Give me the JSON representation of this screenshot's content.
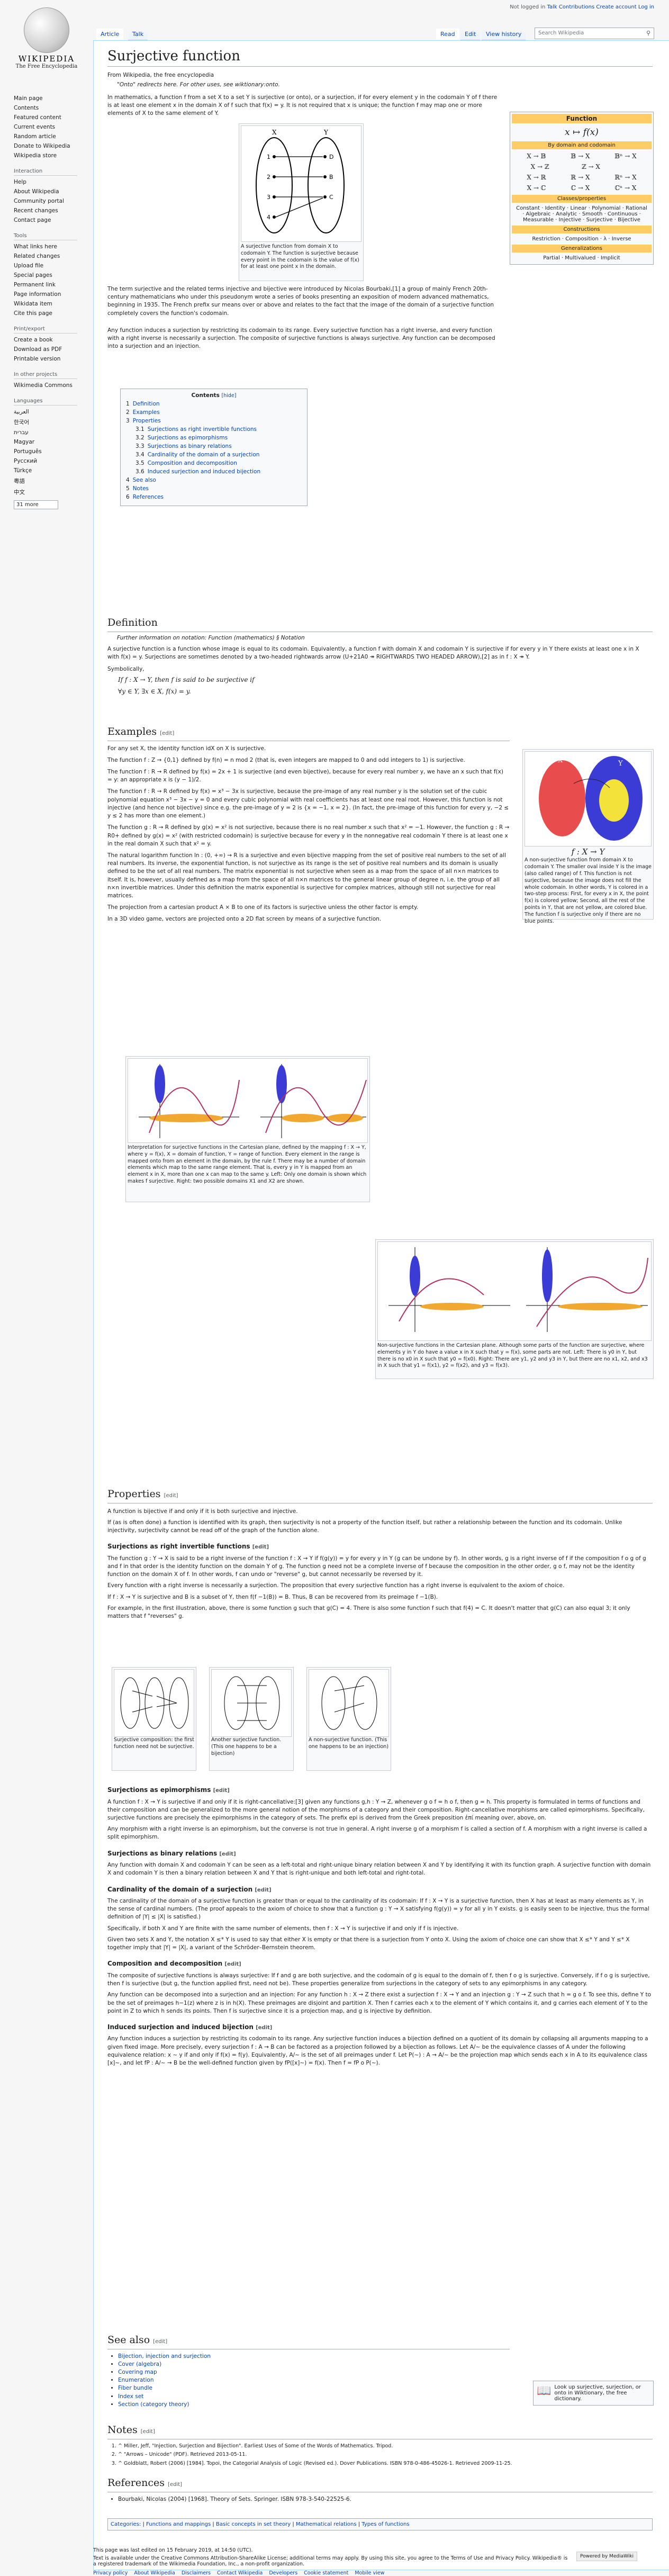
{
  "logo": {
    "wordmark": "WIKIPEDIA",
    "tagline": "The Free Encyclopedia"
  },
  "user": {
    "not_logged": "Not logged in",
    "talk": "Talk",
    "contribs": "Contributions",
    "create": "Create account",
    "login": "Log in"
  },
  "tabs": {
    "article": "Article",
    "talk": "Talk",
    "read": "Read",
    "edit": "Edit",
    "history": "View history"
  },
  "search": {
    "placeholder": "Search Wikipedia"
  },
  "sidebar": {
    "main": [
      "Main page",
      "Contents",
      "Featured content",
      "Current events",
      "Random article",
      "Donate to Wikipedia",
      "Wikipedia store"
    ],
    "interaction_h": "Interaction",
    "interaction": [
      "Help",
      "About Wikipedia",
      "Community portal",
      "Recent changes",
      "Contact page"
    ],
    "tools_h": "Tools",
    "tools": [
      "What links here",
      "Related changes",
      "Upload file",
      "Special pages",
      "Permanent link",
      "Page information",
      "Wikidata item",
      "Cite this page"
    ],
    "print_h": "Print/export",
    "print": [
      "Create a book",
      "Download as PDF",
      "Printable version"
    ],
    "other_h": "In other projects",
    "other": [
      "Wikimedia Commons"
    ],
    "lang_h": "Languages",
    "langs": [
      "العربية",
      "한국어",
      "עברית",
      "Magyar",
      "Português",
      "Русский",
      "Türkçe",
      "粵語",
      "中文"
    ],
    "more_langs": "31 more"
  },
  "page": {
    "title": "Surjective function",
    "from": "From Wikipedia, the free encyclopedia",
    "hatnote": "\"Onto\" redirects here. For other uses, see wiktionary:onto.",
    "intro1": "In mathematics, a function f from a set X to a set Y is surjective (or onto), or a surjection, if for every element y in the codomain Y of f there is at least one element x in the domain X of f such that f(x) = y. It is not required that x is unique; the function f may map one or more elements of X to the same element of Y.",
    "intro2": "The term surjective and the related terms injective and bijective were introduced by Nicolas Bourbaki,[1] a group of mainly French 20th-century mathematicians who under this pseudonym wrote a series of books presenting an exposition of modern advanced mathematics, beginning in 1935. The French prefix sur means over or above and relates to the fact that the image of the domain of a surjective function completely covers the function's codomain.",
    "intro3": "Any function induces a surjection by restricting its codomain to its range. Every surjective function has a right inverse, and every function with a right inverse is necessarily a surjection. The composite of surjective functions is always surjective. Any function can be decomposed into a surjection and an injection.",
    "fig1_caption": "A surjective function from domain X to codomain Y. The function is surjective because every point in the codomain is the value of f(x) for at least one point x in the domain."
  },
  "infobox": {
    "title": "Function",
    "formula": "x ↦ f(x)",
    "subtitle": "By domain and codomain",
    "rows": [
      [
        "X → 𝔹",
        "𝔹 → X",
        "𝔹ⁿ → X"
      ],
      [
        "X → ℤ",
        "ℤ → X",
        ""
      ],
      [
        "X → ℝ",
        "ℝ → X",
        "ℝⁿ → X"
      ],
      [
        "X → ℂ",
        "ℂ → X",
        "ℂⁿ → X"
      ]
    ],
    "classes_h": "Classes/properties",
    "classes": "Constant · Identity · Linear · Polynomial · Rational · Algebraic · Analytic · Smooth · Continuous · Measurable · Injective · Surjective · Bijective",
    "constructions_h": "Constructions",
    "constructions": "Restriction · Composition · λ · Inverse",
    "gen_h": "Generalizations",
    "gen": "Partial · Multivalued · Implicit"
  },
  "toc": {
    "title": "Contents",
    "hide": "[hide]",
    "items": [
      {
        "n": "1",
        "t": "Definition",
        "lvl": 1
      },
      {
        "n": "2",
        "t": "Examples",
        "lvl": 1
      },
      {
        "n": "3",
        "t": "Properties",
        "lvl": 1
      },
      {
        "n": "3.1",
        "t": "Surjections as right invertible functions",
        "lvl": 2
      },
      {
        "n": "3.2",
        "t": "Surjections as epimorphisms",
        "lvl": 2
      },
      {
        "n": "3.3",
        "t": "Surjections as binary relations",
        "lvl": 2
      },
      {
        "n": "3.4",
        "t": "Cardinality of the domain of a surjection",
        "lvl": 2
      },
      {
        "n": "3.5",
        "t": "Composition and decomposition",
        "lvl": 2
      },
      {
        "n": "3.6",
        "t": "Induced surjection and induced bijection",
        "lvl": 2
      },
      {
        "n": "4",
        "t": "See also",
        "lvl": 1
      },
      {
        "n": "5",
        "t": "Notes",
        "lvl": 1
      },
      {
        "n": "6",
        "t": "References",
        "lvl": 1
      }
    ]
  },
  "edit": "[edit]",
  "definition": {
    "h": "Definition",
    "hat": "Further information on notation: Function (mathematics) § Notation",
    "p1": "A surjective function is a function whose image is equal to its codomain. Equivalently, a function f with domain X and codomain Y is surjective if for every y in Y there exists at least one x in X with f(x) = y. Surjections are sometimes denoted by a two-headed rightwards arrow (U+21A0 ↠ RIGHTWARDS TWO HEADED ARROW),[2] as in f : X ↠ Y.",
    "sym": "Symbolically,",
    "f1": "If f : X → Y, then f is said to be surjective if",
    "f2": "∀y ∈ Y, ∃x ∈ X, f(x) = y."
  },
  "examples": {
    "h": "Examples",
    "ps": [
      "For any set X, the identity function idX on X is surjective.",
      "The function f : Z → {0,1} defined by f(n) = n mod 2 (that is, even integers are mapped to 0 and odd integers to 1) is surjective.",
      "The function f : R → R defined by f(x) = 2x + 1 is surjective (and even bijective), because for every real number y, we have an x such that f(x) = y: an appropriate x is (y − 1)/2.",
      "The function f : R → R defined by f(x) = x³ − 3x is surjective, because the pre-image of any real number y is the solution set of the cubic polynomial equation x³ − 3x − y = 0 and every cubic polynomial with real coefficients has at least one real root. However, this function is not injective (and hence not bijective) since e.g. the pre-image of y = 2 is {x = −1, x = 2}. (In fact, the pre-image of this function for every y, −2 ≤ y ≤ 2 has more than one element.)",
      "The function g : R → R defined by g(x) = x² is not surjective, because there is no real number x such that x² = −1. However, the function g : R → R0+ defined by g(x) = x² (with restricted codomain) is surjective because for every y in the nonnegative real codomain Y there is at least one x in the real domain X such that x² = y.",
      "The natural logarithm function ln : (0, +∞) → R is a surjective and even bijective mapping from the set of positive real numbers to the set of all real numbers. Its inverse, the exponential function, is not surjective as its range is the set of positive real numbers and its domain is usually defined to be the set of all real numbers. The matrix exponential is not surjective when seen as a map from the space of all n×n matrices to itself. It is, however, usually defined as a map from the space of all n×n matrices to the general linear group of degree n, i.e. the group of all n×n invertible matrices. Under this definition the matrix exponential is surjective for complex matrices, although still not surjective for real matrices.",
      "The projection from a cartesian product A × B to one of its factors is surjective unless the other factor is empty.",
      "In a 3D video game, vectors are projected onto a 2D flat screen by means of a surjective function."
    ],
    "fig2_caption": "A non-surjective function from domain X to codomain Y. The smaller oval inside Y is the image (also called range) of f. This function is not surjective, because the image does not fill the whole codomain. In other words, Y is colored in a two-step process: First, for every x in X, the point f(x) is colored yellow; Second, all the rest of the points in Y, that are not yellow, are colored blue. The function f is surjective only if there are no blue points.",
    "fig3_caption": "Interpretation for surjective functions in the Cartesian plane, defined by the mapping f : X → Y, where y = f(x), X = domain of function, Y = range of function. Every element in the range is mapped onto from an element in the domain, by the rule f. There may be a number of domain elements which map to the same range element. That is, every y in Y is mapped from an element x in X, more than one x can map to the same y. Left: Only one domain is shown which makes f surjective. Right: two possible domains X1 and X2 are shown.",
    "fig4_caption": "Non-surjective functions in the Cartesian plane. Although some parts of the function are surjective, where elements y in Y do have a value x in X such that y = f(x), some parts are not. Left: There is y0 in Y, but there is no x0 in X such that y0 = f(x0). Right: There are y1, y2 and y3 in Y, but there are no x1, x2, and x3 in X such that y1 = f(x1), y2 = f(x2), and y3 = f(x3)."
  },
  "properties": {
    "h": "Properties",
    "p1": "A function is bijective if and only if it is both surjective and injective.",
    "p2": "If (as is often done) a function is identified with its graph, then surjectivity is not a property of the function itself, but rather a relationship between the function and its codomain. Unlike injectivity, surjectivity cannot be read off of the graph of the function alone.",
    "s1_h": "Surjections as right invertible functions",
    "s1_p1": "The function g : Y → X is said to be a right inverse of the function f : X → Y if f(g(y)) = y for every y in Y (g can be undone by f). In other words, g is a right inverse of f if the composition f o g of g and f in that order is the identity function on the domain Y of g. The function g need not be a complete inverse of f because the composition in the other order, g o f, may not be the identity function on the domain X of f. In other words, f can undo or \"reverse\" g, but cannot necessarily be reversed by it.",
    "s1_p2": "Every function with a right inverse is necessarily a surjection. The proposition that every surjective function has a right inverse is equivalent to the axiom of choice.",
    "s1_p3": "If f : X → Y is surjective and B is a subset of Y, then f(f −1(B)) = B. Thus, B can be recovered from its preimage f −1(B).",
    "s1_p4": "For example, in the first illustration, above, there is some function g such that g(C) = 4. There is also some function f such that f(4) = C. It doesn't matter that g(C) can also equal 3; it only matters that f \"reverses\" g.",
    "cap_a": "Surjective composition: the first function need not be surjective.",
    "cap_b": "Another surjective function. (This one happens to be a bijection)",
    "cap_c": "A non-surjective function. (This one happens to be an injection)",
    "s2_h": "Surjections as epimorphisms",
    "s2_p1": "A function f : X → Y is surjective if and only if it is right-cancellative:[3] given any functions g,h : Y → Z, whenever g o f = h o f, then g = h. This property is formulated in terms of functions and their composition and can be generalized to the more general notion of the morphisms of a category and their composition. Right-cancellative morphisms are called epimorphisms. Specifically, surjective functions are precisely the epimorphisms in the category of sets. The prefix epi is derived from the Greek preposition ἐπί meaning over, above, on.",
    "s2_p2": "Any morphism with a right inverse is an epimorphism, but the converse is not true in general. A right inverse g of a morphism f is called a section of f. A morphism with a right inverse is called a split epimorphism.",
    "s3_h": "Surjections as binary relations",
    "s3_p1": "Any function with domain X and codomain Y can be seen as a left-total and right-unique binary relation between X and Y by identifying it with its function graph. A surjective function with domain X and codomain Y is then a binary relation between X and Y that is right-unique and both left-total and right-total.",
    "s4_h": "Cardinality of the domain of a surjection",
    "s4_p1": "The cardinality of the domain of a surjective function is greater than or equal to the cardinality of its codomain: If f : X → Y is a surjective function, then X has at least as many elements as Y, in the sense of cardinal numbers. (The proof appeals to the axiom of choice to show that a function g : Y → X satisfying f(g(y)) = y for all y in Y exists. g is easily seen to be injective, thus the formal definition of |Y| ≤ |X| is satisfied.)",
    "s4_p2": "Specifically, if both X and Y are finite with the same number of elements, then f : X → Y is surjective if and only if f is injective.",
    "s4_p3": "Given two sets X and Y, the notation X ≤* Y is used to say that either X is empty or that there is a surjection from Y onto X. Using the axiom of choice one can show that X ≤* Y and Y ≤* X together imply that |Y| = |X|, a variant of the Schröder–Bernstein theorem.",
    "s5_h": "Composition and decomposition",
    "s5_p1": "The composite of surjective functions is always surjective: If f and g are both surjective, and the codomain of g is equal to the domain of f, then f o g is surjective. Conversely, if f o g is surjective, then f is surjective (but g, the function applied first, need not be). These properties generalize from surjections in the category of sets to any epimorphisms in any category.",
    "s5_p2": "Any function can be decomposed into a surjection and an injection: For any function h : X → Z there exist a surjection f : X → Y and an injection g : Y → Z such that h = g o f. To see this, define Y to be the set of preimages h−1(z) where z is in h(X). These preimages are disjoint and partition X. Then f carries each x to the element of Y which contains it, and g carries each element of Y to the point in Z to which h sends its points. Then f is surjective since it is a projection map, and g is injective by definition.",
    "s6_h": "Induced surjection and induced bijection",
    "s6_p1": "Any function induces a surjection by restricting its codomain to its range. Any surjective function induces a bijection defined on a quotient of its domain by collapsing all arguments mapping to a given fixed image. More precisely, every surjection f : A → B can be factored as a projection followed by a bijection as follows. Let A/~ be the equivalence classes of A under the following equivalence relation: x ~ y if and only if f(x) = f(y). Equivalently, A/~ is the set of all preimages under f. Let P(~) : A → A/~ be the projection map which sends each x in A to its equivalence class [x]~, and let fP : A/~ → B be the well-defined function given by fP([x]~) = f(x). Then f = fP o P(~)."
  },
  "see_also": {
    "h": "See also",
    "items": [
      "Bijection, injection and surjection",
      "Cover (algebra)",
      "Covering map",
      "Enumeration",
      "Fiber bundle",
      "Index set",
      "Section (category theory)"
    ]
  },
  "commons": {
    "text": "Look up surjective, surjection, or onto in Wiktionary, the free dictionary."
  },
  "notes": {
    "h": "Notes",
    "items": [
      "^ Miller, Jeff, \"Injection, Surjection and Bijection\". Earliest Uses of Some of the Words of Mathematics. Tripod.",
      "^ \"Arrows – Unicode\" (PDF). Retrieved 2013-05-11.",
      "^ Goldblatt, Robert (2006) [1984]. Topoi, the Categorial Analysis of Logic (Revised ed.). Dover Publications. ISBN 978-0-486-45026-1. Retrieved 2009-11-25."
    ]
  },
  "references": {
    "h": "References",
    "items": [
      "Bourbaki, Nicolas (2004) [1968]. Theory of Sets. Springer. ISBN 978-3-540-22525-6."
    ]
  },
  "categories": {
    "label": "Categories:",
    "items": [
      "Functions and mappings",
      "Basic concepts in set theory",
      "Mathematical relations",
      "Types of functions"
    ]
  },
  "footer": {
    "edited": "This page was last edited on 15 February 2019, at 14:50 (UTC).",
    "license": "Text is available under the Creative Commons Attribution-ShareAlike License; additional terms may apply. By using this site, you agree to the Terms of Use and Privacy Policy. Wikipedia® is a registered trademark of the Wikimedia Foundation, Inc., a non-profit organization.",
    "links": [
      "Privacy policy",
      "About Wikipedia",
      "Disclaimers",
      "Contact Wikipedia",
      "Developers",
      "Cookie statement",
      "Mobile view"
    ],
    "badge": "Powered by MediaWiki"
  }
}
